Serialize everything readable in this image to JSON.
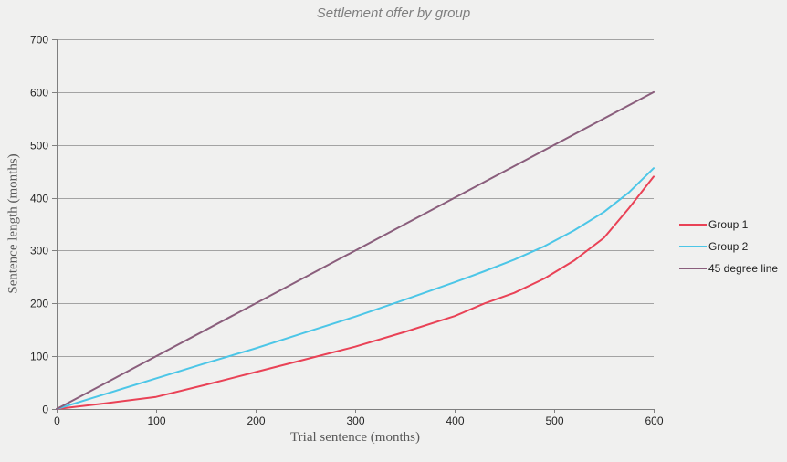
{
  "chart_data": {
    "type": "line",
    "title": "Settlement offer by group",
    "xlabel": "Trial sentence (months)",
    "ylabel": "Sentence length  (months)",
    "xlim": [
      0,
      600
    ],
    "ylim": [
      0,
      700
    ],
    "xticks": [
      0,
      100,
      200,
      300,
      400,
      500,
      600
    ],
    "yticks": [
      0,
      100,
      200,
      300,
      400,
      500,
      600,
      700
    ],
    "grid": "horizontal-only",
    "legend_position": "right-middle",
    "series": [
      {
        "name": "Group 1",
        "color": "#e94256",
        "x": [
          0,
          50,
          100,
          150,
          200,
          250,
          300,
          350,
          400,
          430,
          460,
          490,
          520,
          550,
          575,
          600
        ],
        "y": [
          0,
          11,
          23,
          46,
          70,
          94,
          118,
          146,
          176,
          200,
          220,
          247,
          281,
          324,
          380,
          440
        ]
      },
      {
        "name": "Group 2",
        "color": "#4cc6e7",
        "x": [
          0,
          50,
          100,
          150,
          200,
          250,
          300,
          350,
          400,
          430,
          460,
          490,
          520,
          550,
          575,
          600
        ],
        "y": [
          0,
          29,
          58,
          87,
          115,
          145,
          175,
          207,
          240,
          261,
          283,
          308,
          338,
          373,
          410,
          456
        ]
      },
      {
        "name": "45 degree line",
        "color": "#8a5e7c",
        "x": [
          0,
          600
        ],
        "y": [
          0,
          600
        ]
      }
    ]
  },
  "colors": {
    "background": "#f0f0ef",
    "gridline": "#a3a3a3",
    "axis": "#7f7f7f",
    "title_text": "#7f7f7f",
    "axis_title_text": "#595959",
    "tick_label_text": "#262626",
    "legend_label_text": "#1f1f1f"
  }
}
